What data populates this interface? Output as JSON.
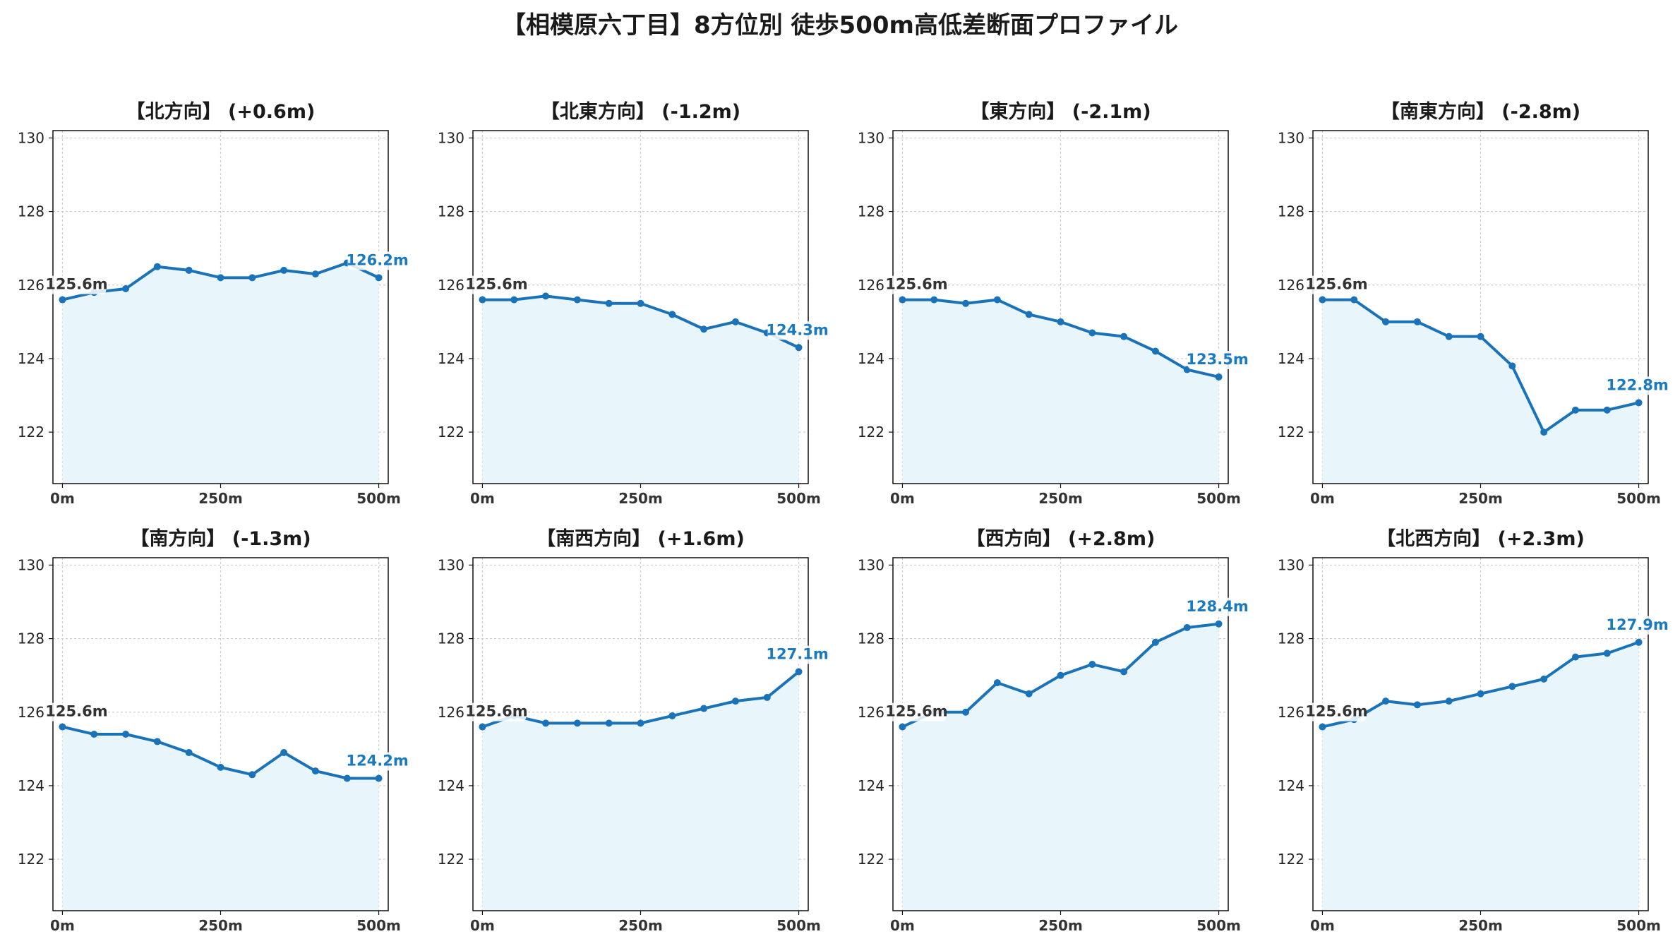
{
  "title": "【相模原六丁目】8方位別 徒歩500m高低差断面プロファイル",
  "colors": {
    "line": "#1a72b8",
    "fill": "#e8f6fc",
    "grid": "#cccccc",
    "end_label": "#1a7ac0"
  },
  "chart_data": [
    {
      "type": "line",
      "title": "【北方向】 (+0.6m)",
      "x": [
        0,
        50,
        100,
        150,
        200,
        250,
        300,
        350,
        400,
        450,
        500
      ],
      "series": [
        {
          "values": [
            125.6,
            125.8,
            125.9,
            126.5,
            126.4,
            126.2,
            126.2,
            126.4,
            126.3,
            126.6,
            126.2
          ]
        }
      ],
      "xticks": [
        "0m",
        "250m",
        "500m"
      ],
      "yticks": [
        122,
        124,
        126,
        128,
        130
      ],
      "ylim": [
        120.6,
        130.2
      ],
      "start_label": "125.6m",
      "end_label": "126.2m",
      "grid": true
    },
    {
      "type": "line",
      "title": "【北東方向】 (-1.2m)",
      "x": [
        0,
        50,
        100,
        150,
        200,
        250,
        300,
        350,
        400,
        450,
        500
      ],
      "series": [
        {
          "values": [
            125.6,
            125.6,
            125.7,
            125.6,
            125.5,
            125.5,
            125.2,
            124.8,
            125.0,
            124.7,
            124.3
          ]
        }
      ],
      "xticks": [
        "0m",
        "250m",
        "500m"
      ],
      "yticks": [
        122,
        124,
        126,
        128,
        130
      ],
      "ylim": [
        120.6,
        130.2
      ],
      "start_label": "125.6m",
      "end_label": "124.3m",
      "grid": true
    },
    {
      "type": "line",
      "title": "【東方向】 (-2.1m)",
      "x": [
        0,
        50,
        100,
        150,
        200,
        250,
        300,
        350,
        400,
        450,
        500
      ],
      "series": [
        {
          "values": [
            125.6,
            125.6,
            125.5,
            125.6,
            125.2,
            125.0,
            124.7,
            124.6,
            124.2,
            123.7,
            123.5
          ]
        }
      ],
      "xticks": [
        "0m",
        "250m",
        "500m"
      ],
      "yticks": [
        122,
        124,
        126,
        128,
        130
      ],
      "ylim": [
        120.6,
        130.2
      ],
      "start_label": "125.6m",
      "end_label": "123.5m",
      "grid": true
    },
    {
      "type": "line",
      "title": "【南東方向】 (-2.8m)",
      "x": [
        0,
        50,
        100,
        150,
        200,
        250,
        300,
        350,
        400,
        450,
        500
      ],
      "series": [
        {
          "values": [
            125.6,
            125.6,
            125.0,
            125.0,
            124.6,
            124.6,
            123.8,
            122.0,
            122.6,
            122.6,
            122.8
          ]
        }
      ],
      "xticks": [
        "0m",
        "250m",
        "500m"
      ],
      "yticks": [
        122,
        124,
        126,
        128,
        130
      ],
      "ylim": [
        120.6,
        130.2
      ],
      "start_label": "125.6m",
      "end_label": "122.8m",
      "grid": true
    },
    {
      "type": "line",
      "title": "【南方向】 (-1.3m)",
      "x": [
        0,
        50,
        100,
        150,
        200,
        250,
        300,
        350,
        400,
        450,
        500
      ],
      "series": [
        {
          "values": [
            125.6,
            125.4,
            125.4,
            125.2,
            124.9,
            124.5,
            124.3,
            124.9,
            124.4,
            124.2,
            124.2
          ]
        }
      ],
      "xticks": [
        "0m",
        "250m",
        "500m"
      ],
      "yticks": [
        122,
        124,
        126,
        128,
        130
      ],
      "ylim": [
        120.6,
        130.2
      ],
      "start_label": "125.6m",
      "end_label": "124.2m",
      "grid": true
    },
    {
      "type": "line",
      "title": "【南西方向】 (+1.6m)",
      "x": [
        0,
        50,
        100,
        150,
        200,
        250,
        300,
        350,
        400,
        450,
        500
      ],
      "series": [
        {
          "values": [
            125.6,
            125.9,
            125.7,
            125.7,
            125.7,
            125.7,
            125.9,
            126.1,
            126.3,
            126.4,
            127.1
          ]
        }
      ],
      "xticks": [
        "0m",
        "250m",
        "500m"
      ],
      "yticks": [
        122,
        124,
        126,
        128,
        130
      ],
      "ylim": [
        120.6,
        130.2
      ],
      "start_label": "125.6m",
      "end_label": "127.1m",
      "grid": true
    },
    {
      "type": "line",
      "title": "【西方向】 (+2.8m)",
      "x": [
        0,
        50,
        100,
        150,
        200,
        250,
        300,
        350,
        400,
        450,
        500
      ],
      "series": [
        {
          "values": [
            125.6,
            126.0,
            126.0,
            126.8,
            126.5,
            127.0,
            127.3,
            127.1,
            127.9,
            128.3,
            128.4
          ]
        }
      ],
      "xticks": [
        "0m",
        "250m",
        "500m"
      ],
      "yticks": [
        122,
        124,
        126,
        128,
        130
      ],
      "ylim": [
        120.6,
        130.2
      ],
      "start_label": "125.6m",
      "end_label": "128.4m",
      "grid": true
    },
    {
      "type": "line",
      "title": "【北西方向】 (+2.3m)",
      "x": [
        0,
        50,
        100,
        150,
        200,
        250,
        300,
        350,
        400,
        450,
        500
      ],
      "series": [
        {
          "values": [
            125.6,
            125.8,
            126.3,
            126.2,
            126.3,
            126.5,
            126.7,
            126.9,
            127.5,
            127.6,
            127.9
          ]
        }
      ],
      "xticks": [
        "0m",
        "250m",
        "500m"
      ],
      "yticks": [
        122,
        124,
        126,
        128,
        130
      ],
      "ylim": [
        120.6,
        130.2
      ],
      "start_label": "125.6m",
      "end_label": "127.9m",
      "grid": true
    }
  ]
}
